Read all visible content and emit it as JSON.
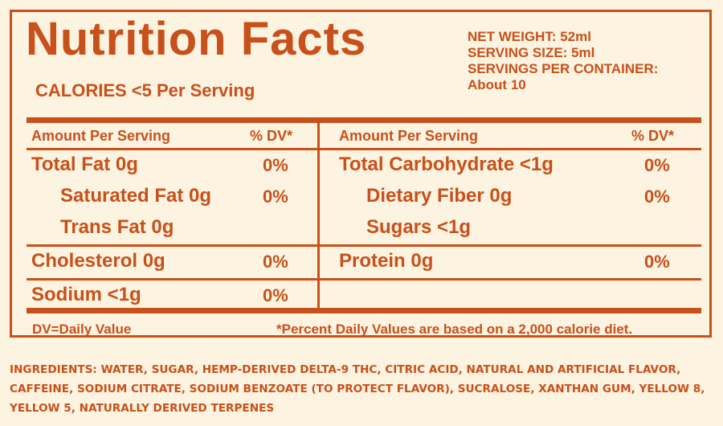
{
  "title": "Nutrition Facts",
  "calories": "CALORIES <5 Per Serving",
  "meta": {
    "net_weight": "NET WEIGHT: 52ml",
    "serving_size": "SERVING SIZE: 5ml",
    "servings_per_container": "SERVINGS PER CONTAINER:",
    "servings_value": "About 10"
  },
  "table": {
    "header_amount": "Amount Per Serving",
    "header_dv": "% DV*",
    "left": [
      {
        "name": "Total Fat 0g",
        "dv": "0%"
      },
      {
        "name": "Saturated Fat 0g",
        "dv": "0%"
      },
      {
        "name": "Trans Fat 0g",
        "dv": ""
      },
      {
        "name": "Cholesterol 0g",
        "dv": "0%"
      },
      {
        "name": "Sodium <1g",
        "dv": "0%"
      }
    ],
    "right": [
      {
        "name": "Total Carbohydrate <1g",
        "dv": "0%"
      },
      {
        "name": "Dietary Fiber 0g",
        "dv": "0%"
      },
      {
        "name": "Sugars <1g",
        "dv": ""
      },
      {
        "name": "Protein 0g",
        "dv": "0%"
      },
      {
        "name": "",
        "dv": ""
      }
    ]
  },
  "footer": {
    "dv_label": "DV=Daily Value",
    "note": "*Percent Daily Values are based on a 2,000 calorie diet."
  },
  "ingredients": "INGREDIENTS: WATER, SUGAR, HEMP-DERIVED DELTA-9 THC, CITRIC ACID, NATURAL AND ARTIFICIAL FLAVOR, CAFFEINE, SODIUM CITRATE, SODIUM BENZOATE (TO PROTECT FLAVOR), SUCRALOSE, XANTHAN GUM, YELLOW 8, YELLOW 5, NATURALLY DERIVED TERPENES",
  "colors": {
    "accent": "#c8501a",
    "background": "#fdf3e1"
  }
}
